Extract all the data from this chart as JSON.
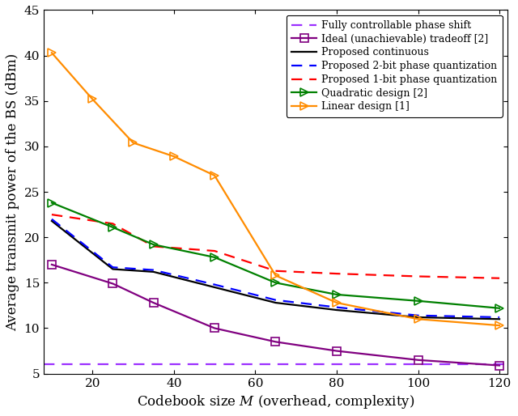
{
  "x_ticks": [
    20,
    40,
    60,
    80,
    100,
    120
  ],
  "x_lim": [
    8,
    122
  ],
  "y_lim": [
    5,
    45
  ],
  "y_ticks": [
    5,
    10,
    15,
    20,
    25,
    30,
    35,
    40,
    45
  ],
  "xlabel": "Codebook size $M$ (overhead, complexity)",
  "ylabel": "Average transmit power of the BS (dBm)",
  "fully_controllable": {
    "y": 6.0,
    "color": "#9B30FF",
    "linestyle": "--",
    "linewidth": 1.6,
    "label": "Fully controllable phase shift",
    "dashes": [
      6,
      4
    ]
  },
  "ideal_tradeoff": {
    "x": [
      10,
      25,
      35,
      50,
      65,
      80,
      100,
      120
    ],
    "y": [
      17.0,
      14.9,
      12.8,
      10.0,
      8.5,
      7.5,
      6.5,
      5.9
    ],
    "color": "#800080",
    "linestyle": "-",
    "linewidth": 1.6,
    "marker": "s",
    "markersize": 6.5,
    "label": "Ideal (unachievable) tradeoff [2]"
  },
  "proposed_continuous": {
    "x": [
      10,
      25,
      35,
      50,
      65,
      80,
      100,
      120
    ],
    "y": [
      21.8,
      16.5,
      16.2,
      14.5,
      12.8,
      12.0,
      11.2,
      11.0
    ],
    "color": "#000000",
    "linestyle": "-",
    "linewidth": 1.6,
    "label": "Proposed continuous"
  },
  "proposed_2bit": {
    "x": [
      10,
      25,
      35,
      50,
      65,
      80,
      100,
      120
    ],
    "y": [
      22.0,
      16.7,
      16.4,
      14.8,
      13.1,
      12.3,
      11.4,
      11.2
    ],
    "color": "#0000FF",
    "linestyle": "--",
    "linewidth": 1.6,
    "label": "Proposed 2-bit phase quantization",
    "dashes": [
      6,
      4
    ]
  },
  "proposed_1bit": {
    "x": [
      10,
      25,
      35,
      50,
      65,
      80,
      100,
      120
    ],
    "y": [
      22.5,
      21.5,
      19.0,
      18.5,
      16.3,
      16.0,
      15.7,
      15.5
    ],
    "color": "#FF0000",
    "linestyle": "--",
    "linewidth": 1.6,
    "label": "Proposed 1-bit phase quantization",
    "dashes": [
      6,
      4
    ]
  },
  "quadratic_design": {
    "x": [
      10,
      25,
      35,
      50,
      65,
      80,
      100,
      120
    ],
    "y": [
      23.8,
      21.1,
      19.2,
      17.8,
      15.0,
      13.7,
      13.0,
      12.2
    ],
    "color": "#008000",
    "linestyle": "-",
    "linewidth": 1.6,
    "marker": ">",
    "markersize": 7,
    "label": "Quadratic design [2]"
  },
  "linear_design": {
    "x": [
      10,
      20,
      30,
      40,
      50,
      65,
      80,
      100,
      120
    ],
    "y": [
      40.3,
      35.2,
      30.4,
      28.9,
      26.8,
      15.8,
      12.8,
      11.0,
      10.3
    ],
    "color": "#FF8C00",
    "linestyle": "-",
    "linewidth": 1.6,
    "marker": ">",
    "markersize": 7,
    "label": "Linear design [1]"
  },
  "legend_fontsize": 9.0,
  "tick_fontsize": 11,
  "label_fontsize": 12
}
